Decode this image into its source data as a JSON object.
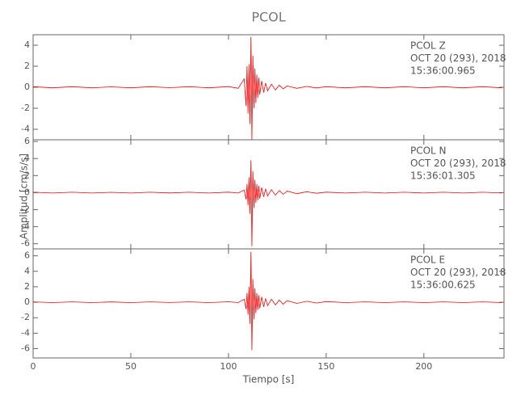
{
  "chart_data": [
    {
      "type": "line",
      "title": "PCOL",
      "color": "#ff0000",
      "annotations": [
        "PCOL   Z",
        "OCT 20 (293), 2018",
        "15:36:00.965"
      ],
      "xlim": [
        0,
        241
      ],
      "xticks": [
        0,
        50,
        100,
        150,
        200
      ],
      "ylim": [
        -5,
        5
      ],
      "yticks": [
        -4,
        -2,
        0,
        2,
        4
      ],
      "x": [
        0,
        10,
        20,
        30,
        40,
        50,
        60,
        70,
        80,
        90,
        100,
        105,
        108,
        109,
        109.5,
        110,
        110.5,
        111,
        111.5,
        112,
        112.5,
        113,
        113.5,
        114,
        114.5,
        115,
        115.5,
        116,
        117,
        118,
        119,
        120,
        122,
        124,
        126,
        128,
        130,
        135,
        140,
        145,
        150,
        160,
        170,
        180,
        190,
        200,
        210,
        220,
        230,
        240
      ],
      "values": [
        0.05,
        -0.05,
        0.05,
        -0.05,
        0.04,
        -0.05,
        0.05,
        -0.04,
        0.05,
        -0.05,
        0.06,
        -0.1,
        0.8,
        -1.8,
        2.0,
        -2.5,
        2.2,
        -3.5,
        4.8,
        -5.0,
        3.0,
        -2.0,
        1.8,
        -1.5,
        1.2,
        -1.0,
        0.9,
        -0.7,
        0.6,
        -0.5,
        0.4,
        -0.35,
        0.3,
        -0.25,
        0.2,
        -0.15,
        0.12,
        -0.1,
        0.08,
        -0.06,
        0.05,
        -0.05,
        0.05,
        -0.05,
        0.05,
        -0.05,
        0.05,
        -0.05,
        0.05,
        -0.05
      ]
    },
    {
      "type": "line",
      "ylabel": "Amplitud [cm/s/s]",
      "color": "#ff0000",
      "annotations": [
        "PCOL   N",
        "OCT 20 (293), 2018",
        "15:36:01.305"
      ],
      "xlim": [
        0,
        241
      ],
      "xticks": [
        0,
        50,
        100,
        150,
        200
      ],
      "ylim": [
        -6.6,
        6.2
      ],
      "yticks": [
        -6,
        -4,
        -2,
        0,
        2,
        4,
        6
      ],
      "x": [
        0,
        10,
        20,
        30,
        40,
        50,
        60,
        70,
        80,
        90,
        100,
        105,
        108,
        109,
        109.5,
        110,
        110.5,
        111,
        111.5,
        112,
        112.5,
        113,
        113.5,
        114,
        114.5,
        115,
        115.5,
        116,
        117,
        118,
        119,
        120,
        122,
        124,
        126,
        128,
        130,
        135,
        140,
        145,
        150,
        160,
        170,
        180,
        190,
        200,
        210,
        220,
        230,
        240
      ],
      "values": [
        0.05,
        -0.05,
        0.05,
        -0.05,
        0.04,
        -0.05,
        0.05,
        -0.04,
        0.05,
        -0.05,
        0.06,
        -0.05,
        0.3,
        -0.8,
        1.0,
        -1.5,
        1.8,
        -2.5,
        3.8,
        -6.3,
        2.5,
        -1.8,
        1.5,
        -1.2,
        1.0,
        -0.9,
        0.8,
        -0.7,
        0.6,
        -0.5,
        0.45,
        -0.4,
        0.35,
        -0.3,
        0.25,
        -0.2,
        0.18,
        -0.12,
        0.1,
        -0.08,
        0.06,
        -0.05,
        0.05,
        -0.05,
        0.05,
        -0.05,
        0.05,
        -0.05,
        0.05,
        -0.05
      ]
    },
    {
      "type": "line",
      "xlabel": "Tiempo [s]",
      "color": "#ff0000",
      "annotations": [
        "PCOL   E",
        "OCT 20 (293), 2018",
        "15:36:00.625"
      ],
      "xlim": [
        0,
        241
      ],
      "xticks": [
        0,
        50,
        100,
        150,
        200
      ],
      "ylim": [
        -7.2,
        6.9
      ],
      "yticks": [
        -6,
        -4,
        -2,
        0,
        2,
        4,
        6
      ],
      "x": [
        0,
        10,
        20,
        30,
        40,
        50,
        60,
        70,
        80,
        90,
        100,
        105,
        108,
        109,
        109.5,
        110,
        110.5,
        111,
        111.5,
        112,
        112.5,
        113,
        113.5,
        114,
        114.5,
        115,
        115.5,
        116,
        117,
        118,
        119,
        120,
        122,
        124,
        126,
        128,
        130,
        135,
        140,
        145,
        150,
        160,
        170,
        180,
        190,
        200,
        210,
        220,
        230,
        240
      ],
      "values": [
        0.05,
        -0.05,
        0.05,
        -0.05,
        0.04,
        -0.05,
        0.05,
        -0.04,
        0.05,
        -0.05,
        0.06,
        -0.05,
        0.4,
        -0.9,
        1.2,
        -1.6,
        2.0,
        -2.8,
        6.5,
        -6.2,
        3.0,
        -2.2,
        1.8,
        -1.4,
        1.2,
        -1.0,
        0.9,
        -0.8,
        0.7,
        -0.6,
        0.5,
        -0.45,
        0.4,
        -0.35,
        0.3,
        -0.25,
        0.2,
        -0.15,
        0.12,
        -0.1,
        0.08,
        -0.05,
        0.05,
        -0.05,
        0.05,
        -0.05,
        0.05,
        -0.05,
        0.05,
        -0.05
      ]
    }
  ]
}
